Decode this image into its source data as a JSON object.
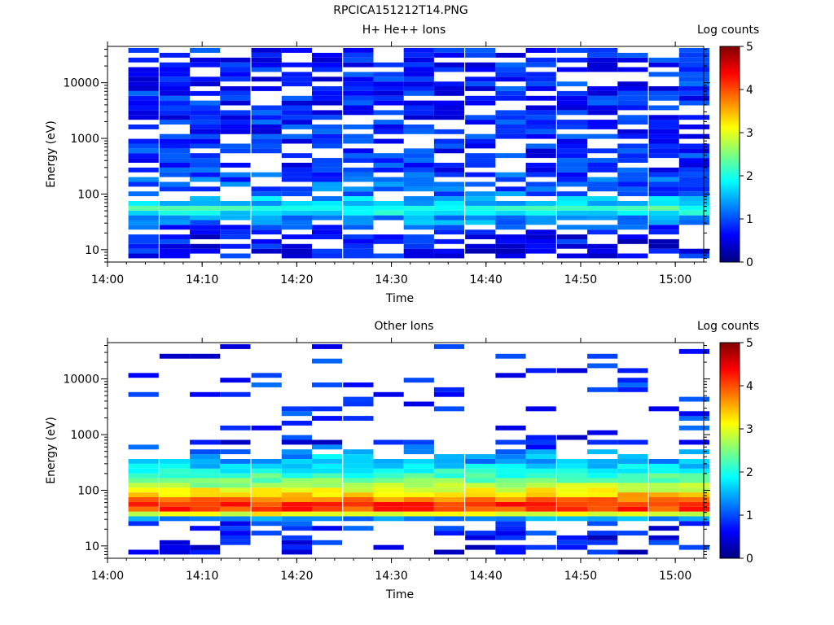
{
  "figure_title": "RPCICA151212T14.PNG",
  "palette": [
    "#00007f",
    "#0000ff",
    "#007fff",
    "#00ffff",
    "#7fff7f",
    "#ffff00",
    "#ff7f00",
    "#ff0000",
    "#7f0000"
  ],
  "chart_data": [
    {
      "type": "heatmap",
      "title": "H+ He++ Ions",
      "xlabel": "Time",
      "ylabel": "Energy (eV)",
      "x_ticks": [
        "14:00",
        "14:10",
        "14:20",
        "14:30",
        "14:40",
        "14:50",
        "15:00"
      ],
      "x_range_minutes": [
        0,
        63
      ],
      "y_scale": "log",
      "y_ticks": [
        "10",
        "100",
        "1000",
        "10000"
      ],
      "y_range": [
        6,
        45000
      ],
      "colorbar": {
        "label": "Log counts",
        "range": [
          0,
          5
        ],
        "ticks": [
          "0",
          "1",
          "2",
          "3",
          "4",
          "5"
        ]
      },
      "time_bin_starts_min": [
        2.2,
        5.5,
        8.7,
        11.9,
        15.2,
        18.4,
        21.6,
        24.9,
        28.1,
        31.3,
        34.5,
        37.8,
        41,
        44.2,
        47.5,
        50.7,
        53.9,
        57.2,
        60.4
      ],
      "time_bin_width_min": 3.2,
      "profile_log_counts": [
        {
          "energy_eV": 10,
          "value": 0.2
        },
        {
          "energy_eV": 20,
          "value": 0.3
        },
        {
          "energy_eV": 30,
          "value": 0.8
        },
        {
          "energy_eV": 45,
          "value": 1.8
        },
        {
          "energy_eV": 55,
          "value": 2.2
        },
        {
          "energy_eV": 70,
          "value": 1.5
        },
        {
          "energy_eV": 100,
          "value": 0.8
        },
        {
          "energy_eV": 300,
          "value": 0.4
        },
        {
          "energy_eV": 3000,
          "value": 0.4
        },
        {
          "energy_eV": 40000,
          "value": 0.35
        }
      ]
    },
    {
      "type": "heatmap",
      "title": "Other Ions",
      "xlabel": "Time",
      "ylabel": "Energy (eV)",
      "x_ticks": [
        "14:00",
        "14:10",
        "14:20",
        "14:30",
        "14:40",
        "14:50",
        "15:00"
      ],
      "x_range_minutes": [
        0,
        63
      ],
      "y_scale": "log",
      "y_ticks": [
        "10",
        "100",
        "1000",
        "10000"
      ],
      "y_range": [
        6,
        45000
      ],
      "colorbar": {
        "label": "Log counts",
        "range": [
          0,
          5
        ],
        "ticks": [
          "0",
          "1",
          "2",
          "3",
          "4",
          "5"
        ]
      },
      "time_bin_starts_min": [
        2.2,
        5.5,
        8.7,
        11.9,
        15.2,
        18.4,
        21.6,
        24.9,
        28.1,
        31.3,
        34.5,
        37.8,
        41,
        44.2,
        47.5,
        50.7,
        53.9,
        57.2,
        60.4
      ],
      "time_bin_width_min": 3.2,
      "profile_log_counts": [
        {
          "energy_eV": 10,
          "value": 0.2
        },
        {
          "energy_eV": 25,
          "value": 0.4
        },
        {
          "energy_eV": 33,
          "value": 1.7
        },
        {
          "energy_eV": 40,
          "value": 3.7
        },
        {
          "energy_eV": 50,
          "value": 4.3
        },
        {
          "energy_eV": 65,
          "value": 3.9
        },
        {
          "energy_eV": 90,
          "value": 3.2
        },
        {
          "energy_eV": 150,
          "value": 2.4
        },
        {
          "energy_eV": 250,
          "value": 1.8
        },
        {
          "energy_eV": 450,
          "value": 1.0
        },
        {
          "energy_eV": 700,
          "value": 0.3
        },
        {
          "energy_eV": 3000,
          "value": 0.5
        },
        {
          "energy_eV": 40000,
          "value": 0.3
        }
      ]
    }
  ]
}
